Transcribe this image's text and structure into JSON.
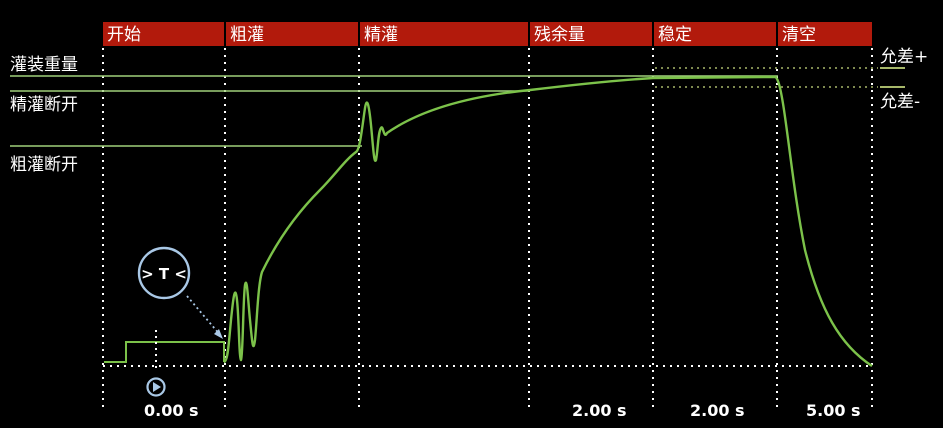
{
  "phases": [
    {
      "label": "开始"
    },
    {
      "label": "粗灌"
    },
    {
      "label": "精灌"
    },
    {
      "label": "残余量"
    },
    {
      "label": "稳定"
    },
    {
      "label": "清空"
    }
  ],
  "left_labels": {
    "fill_weight": "灌装重量",
    "fine_cutoff": "精灌断开",
    "coarse_cutoff": "粗灌断开"
  },
  "right_labels": {
    "tolerance_plus": "允差+",
    "tolerance_minus": "允差-"
  },
  "times": {
    "start": "0.00 s",
    "residual": "2.00 s",
    "stable": "2.00 s",
    "empty": "5.00 s"
  },
  "timer_symbol": "> T <",
  "colors": {
    "phase_bg": "#b21a0c",
    "curve": "#7cc24a",
    "level_line": "#9fcf7a",
    "tolerance_line": "#a7b86a",
    "grid": "#ffffff",
    "timer_icon": "#a9c8e6"
  }
}
